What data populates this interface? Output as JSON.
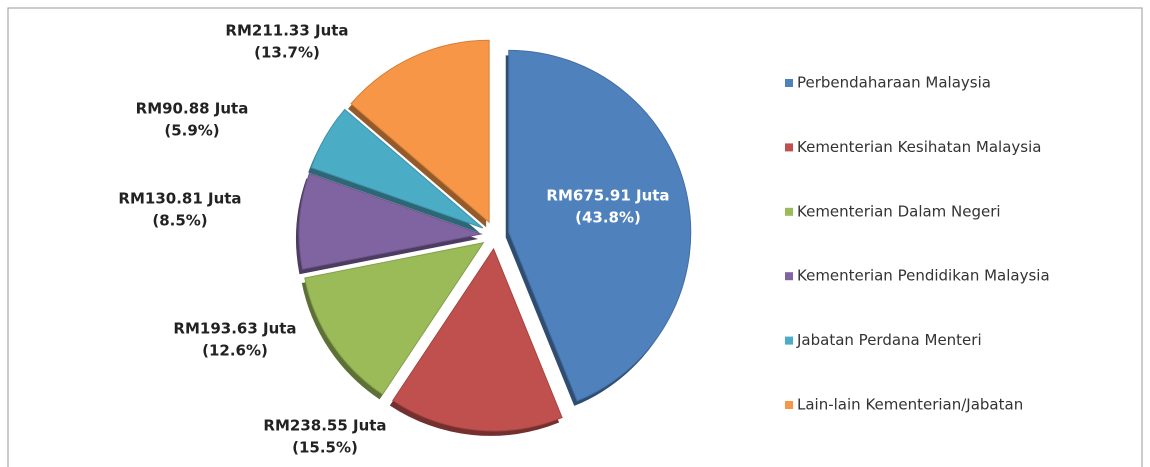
{
  "chart_data": {
    "type": "pie",
    "categories": [
      "Perbendaharaan Malaysia",
      "Kementerian Kesihatan Malaysia",
      "Kementerian Dalam Negeri",
      "Kementerian Pendidikan Malaysia",
      "Jabatan Perdana Menteri",
      "Lain-lain Kementerian/Jabatan"
    ],
    "values": [
      675.91,
      238.55,
      193.63,
      130.81,
      90.88,
      211.33
    ],
    "value_labels": [
      "RM675.91 Juta",
      "RM238.55 Juta",
      "RM193.63 Juta",
      "RM130.81 Juta",
      "RM90.88 Juta",
      "RM211.33 Juta"
    ],
    "percent_labels": [
      "(43.8%)",
      "(15.5%)",
      "(12.6%)",
      "(8.5%)",
      "(5.9%)",
      "(13.7%)"
    ],
    "colors": [
      "#4f81bd",
      "#c0504d",
      "#9bbb59",
      "#8064a2",
      "#4bacc6",
      "#f79646"
    ],
    "legend": "right"
  }
}
